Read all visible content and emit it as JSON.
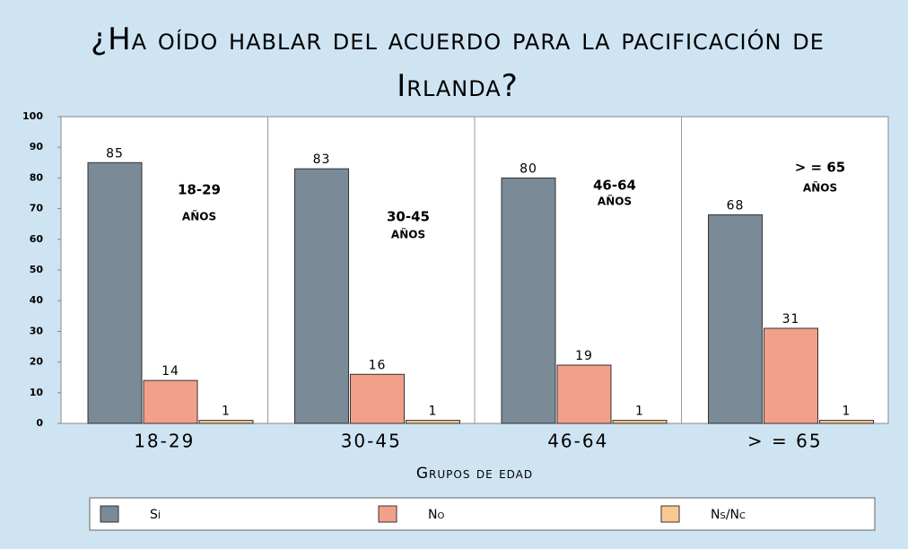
{
  "chart_data": {
    "type": "bar",
    "title": "¿Ha oído hablar del acuerdo para la pacificación de Irlanda?",
    "categories": [
      "18-29",
      "30-45",
      "46-64",
      "> = 65"
    ],
    "series": [
      {
        "name": "Sí",
        "color": "#7a8a96",
        "values": [
          85,
          83,
          80,
          68
        ]
      },
      {
        "name": "No",
        "color": "#f2a08a",
        "values": [
          14,
          16,
          19,
          31
        ]
      },
      {
        "name": "Ns/Nc",
        "color": "#f8c992",
        "values": [
          1,
          1,
          1,
          1
        ]
      }
    ],
    "x_label": "Grupos de edad",
    "annotations": [
      {
        "label": "18-29",
        "sub": "AÑOS"
      },
      {
        "label": "30-45",
        "sub": "AÑOS"
      },
      {
        "label": "46-64",
        "sub": "AÑOS"
      },
      {
        "label": "> = 65",
        "sub": "AÑOS"
      }
    ],
    "ylim": [
      0,
      100
    ],
    "yticks": [
      0,
      10,
      20,
      30,
      40,
      50,
      60,
      70,
      80,
      90,
      100
    ],
    "grid": false,
    "legend": "bottom"
  }
}
